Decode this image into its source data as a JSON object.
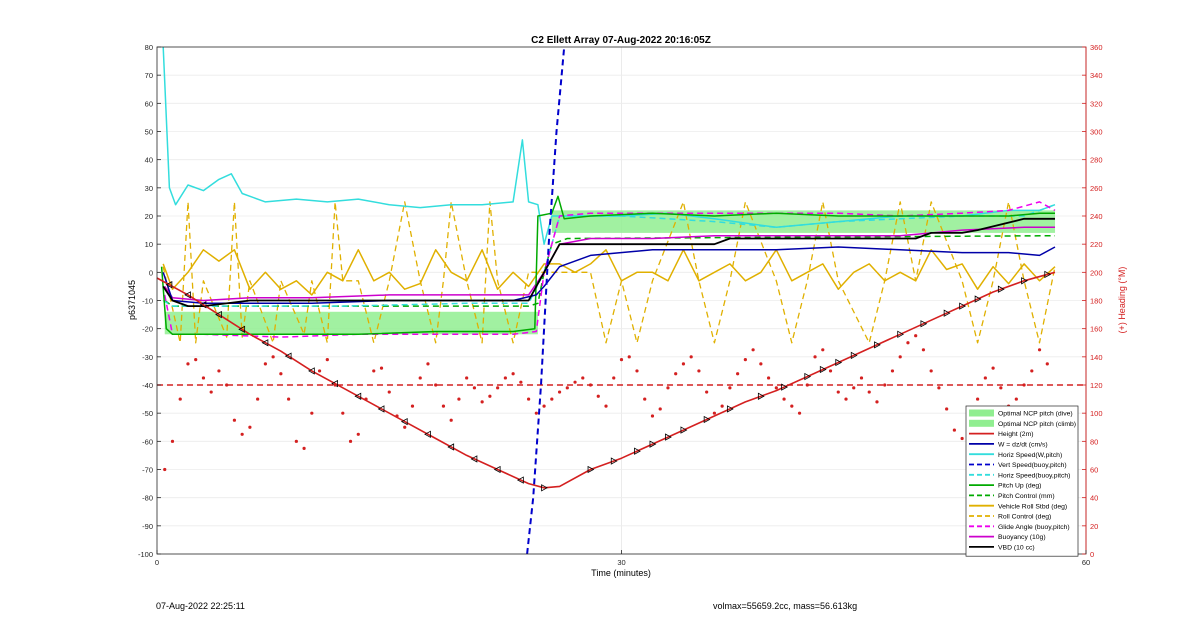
{
  "chart_data": {
    "type": "line",
    "title": "C2 Ellett Array 07-Aug-2022 20:16:05Z",
    "xlabel": "Time (minutes)",
    "ylabel_left": "p6371045",
    "ylabel_right": "(+) Heading (°M)",
    "xlim": [
      0,
      60
    ],
    "ylim_left": [
      -100,
      80
    ],
    "ylim_right": [
      0,
      360
    ],
    "xticks": [
      0,
      30,
      60
    ],
    "yticks_left": [
      -100,
      -90,
      -80,
      -70,
      -60,
      -50,
      -40,
      -30,
      -20,
      -10,
      0,
      10,
      20,
      30,
      40,
      50,
      60,
      70,
      80
    ],
    "yticks_right": [
      0,
      20,
      40,
      60,
      80,
      100,
      120,
      140,
      160,
      180,
      200,
      220,
      240,
      260,
      280,
      300,
      320,
      340,
      360
    ],
    "grid": true,
    "legend_position": "bottom-right",
    "legend": [
      {
        "label": "Optimal NCP pitch (dive)",
        "color": "#90ee90",
        "style": "patch"
      },
      {
        "label": "Optimal NCP pitch (climb)",
        "color": "#90ee90",
        "style": "patch"
      },
      {
        "label": "Height (2m)",
        "color": "#d42020",
        "style": "solid"
      },
      {
        "label": "W = dz/dt (cm/s)",
        "color": "#0000a8",
        "style": "solid"
      },
      {
        "label": "Horiz Speed(W,pitch)",
        "color": "#33dddd",
        "style": "solid"
      },
      {
        "label": "Vert Speed(buoy,pitch)",
        "color": "#0000cc",
        "style": "dashed"
      },
      {
        "label": "Horiz Speed(buoy,pitch)",
        "color": "#33dddd",
        "style": "dashed"
      },
      {
        "label": "Pitch Up (deg)",
        "color": "#00aa00",
        "style": "solid"
      },
      {
        "label": "Pitch Control (mm)",
        "color": "#00aa00",
        "style": "dashed"
      },
      {
        "label": "Vehicle Roll Stbd (deg)",
        "color": "#e0b000",
        "style": "solid"
      },
      {
        "label": "Roll Control (deg)",
        "color": "#e0b000",
        "style": "dashed"
      },
      {
        "label": "Glide Angle (buoy,pitch)",
        "color": "#ee00ee",
        "style": "dashed"
      },
      {
        "label": "Buoyancy (10g)",
        "color": "#cc00cc",
        "style": "solid"
      },
      {
        "label": "VBD (10 cc)",
        "color": "#000000",
        "style": "solid"
      }
    ],
    "heading_target": 120,
    "series": {
      "optimal_dive": {
        "x": [
          0.5,
          24.6
        ],
        "ylow": -22,
        "yhigh": -14
      },
      "optimal_climb": {
        "x": [
          25.5,
          58
        ],
        "ylow": 14,
        "yhigh": 22
      },
      "depth": {
        "x": [
          0,
          2,
          4,
          6,
          8,
          10,
          12,
          14,
          16,
          18,
          20,
          22,
          24,
          25,
          26,
          28,
          30,
          32,
          34,
          36,
          38,
          40,
          42,
          44,
          46,
          48,
          50,
          52,
          54,
          56,
          58
        ],
        "y": [
          -2,
          -8,
          -15,
          -22,
          -28,
          -35,
          -41,
          -47,
          -53,
          -59,
          -65,
          -70,
          -75,
          -76.5,
          -76,
          -70,
          -66,
          -61,
          -56,
          -51,
          -46,
          -42,
          -37,
          -32,
          -27,
          -22,
          -17,
          -12,
          -7,
          -3,
          0
        ]
      },
      "w": {
        "x": [
          0.4,
          1,
          3,
          6,
          10,
          15,
          20,
          23,
          24.5,
          25,
          26,
          28,
          32,
          36,
          40,
          44,
          48,
          52,
          55,
          57,
          58
        ],
        "y": [
          0,
          -10,
          -11,
          -11,
          -11,
          -10,
          -10,
          -10,
          -8,
          -5,
          2,
          6,
          8,
          8,
          8,
          9,
          8,
          7,
          7,
          6,
          9
        ]
      },
      "horiz_speed": {
        "x": [
          0.4,
          0.8,
          1.2,
          2,
          3,
          4,
          4.8,
          5.5,
          7,
          9,
          11,
          13,
          15,
          17,
          19,
          21,
          23,
          23.6,
          24,
          24.6,
          25,
          25.5,
          27,
          30,
          33,
          36,
          40,
          44,
          48,
          52,
          55,
          57,
          58
        ],
        "y": [
          80,
          30,
          24,
          31,
          29,
          33,
          35,
          28,
          25,
          26,
          25,
          26,
          24,
          23,
          24,
          24,
          25,
          47,
          25,
          24,
          10,
          20,
          20,
          20,
          21,
          19,
          16,
          18,
          20,
          20,
          22,
          22,
          24
        ]
      },
      "vert_speed_buoy": {
        "x": [
          23.9,
          24.3,
          24.8,
          25.3,
          25.8,
          26.3
        ],
        "y": [
          -100,
          -80,
          -40,
          10,
          50,
          80
        ]
      },
      "horiz_speed_buoy": {
        "x": [
          0.4,
          1,
          3,
          8,
          12,
          20,
          24,
          25,
          26,
          30,
          36,
          40,
          44,
          48,
          52,
          56,
          58
        ],
        "y": [
          -10,
          -12,
          -12,
          -12,
          -12,
          -11,
          -11,
          0,
          20,
          20,
          18,
          16,
          18,
          19,
          20,
          20,
          24
        ]
      },
      "pitch": {
        "x": [
          0.3,
          0.6,
          1,
          3,
          8,
          13,
          18,
          23,
          24.4,
          24.6,
          25.5,
          25.9,
          26.3,
          28,
          32,
          36,
          40,
          44,
          48,
          52,
          55,
          57,
          58
        ],
        "y": [
          2,
          -20,
          -22,
          -22,
          -22,
          -22,
          -21,
          -21,
          -20,
          20,
          21,
          27,
          19,
          20,
          21,
          20,
          21,
          20,
          20,
          20,
          20,
          21,
          21
        ]
      },
      "pitch_control": {
        "x": [
          0.5,
          1,
          24,
          24.6,
          25,
          25.5,
          26.5,
          58
        ],
        "y": [
          -10,
          -12,
          -12,
          -11,
          0,
          10,
          12,
          13
        ]
      },
      "roll": {
        "x": [
          0.4,
          1,
          2,
          3,
          4,
          5,
          6,
          7,
          8,
          9,
          10,
          11,
          12,
          13,
          14,
          15,
          16,
          17,
          18,
          19,
          20,
          21,
          22,
          23,
          24,
          25,
          26,
          27,
          28,
          29,
          30,
          31,
          32,
          33,
          34,
          35,
          36,
          37,
          38,
          39,
          40,
          41,
          42,
          43,
          44,
          45,
          46,
          47,
          48,
          49,
          50,
          51,
          52,
          53,
          54,
          55,
          56,
          57,
          58
        ],
        "y": [
          3,
          -6,
          0,
          8,
          4,
          8,
          -6,
          0,
          -6,
          -3,
          -8,
          0,
          -3,
          8,
          -3,
          0,
          -6,
          -4,
          8,
          0,
          -3,
          8,
          -6,
          0,
          -5,
          3,
          3,
          0,
          3,
          8,
          -3,
          0,
          0,
          -3,
          8,
          -3,
          0,
          3,
          -3,
          0,
          8,
          -3,
          0,
          3,
          -6,
          0,
          3,
          -3,
          0,
          -3,
          8,
          1,
          3,
          -6,
          2,
          -4,
          3,
          -3,
          2
        ]
      },
      "roll_control": {
        "x": [
          0.4,
          1.5,
          2,
          2.5,
          3,
          4.5,
          5,
          5.5,
          6,
          7.5,
          8,
          9.5,
          10,
          11,
          11.5,
          12,
          13,
          14,
          15,
          16,
          17,
          18,
          18.5,
          19,
          20,
          21,
          21.5,
          22,
          23,
          24,
          25,
          26,
          28,
          29,
          30,
          31,
          32,
          34,
          35,
          36,
          37,
          38,
          40,
          41,
          42,
          43,
          44,
          46,
          47,
          48,
          49,
          50,
          52,
          53,
          54,
          55,
          56,
          57,
          58
        ],
        "y": [
          2,
          -25,
          25,
          -25,
          -3,
          -23,
          25,
          -23,
          -3,
          -25,
          -3,
          -22,
          -3,
          -25,
          25,
          -3,
          -3,
          -25,
          -3,
          25,
          -3,
          -25,
          -3,
          25,
          -3,
          -25,
          25,
          -3,
          -25,
          0,
          0,
          0,
          0,
          -25,
          -3,
          -25,
          -3,
          25,
          -3,
          -25,
          -3,
          25,
          -3,
          -25,
          -3,
          25,
          -3,
          -25,
          -3,
          25,
          -3,
          25,
          -3,
          -25,
          -3,
          25,
          -3,
          -25,
          2
        ]
      },
      "glide_angle": {
        "x": [
          0.5,
          1,
          3,
          8,
          13,
          18,
          23,
          24.5,
          25,
          26,
          28,
          32,
          36,
          40,
          44,
          48,
          52,
          55,
          57,
          58
        ],
        "y": [
          -8,
          -22,
          -22,
          -23,
          -22,
          -22,
          -22,
          -21,
          0,
          20,
          21,
          21,
          21,
          21,
          21,
          20,
          21,
          22,
          25,
          22
        ]
      },
      "buoyancy": {
        "x": [
          0.5,
          1,
          3,
          6,
          10,
          15,
          20,
          24,
          25,
          26,
          28,
          32,
          36,
          40,
          44,
          48,
          52,
          56,
          58
        ],
        "y": [
          -5,
          -9,
          -10,
          -9,
          -9,
          -8,
          -8,
          -8,
          0,
          10,
          12,
          12,
          13,
          13,
          13,
          13,
          15,
          16,
          16
        ]
      },
      "vbd": {
        "x": [
          0.4,
          1,
          2,
          3,
          6,
          10,
          15,
          20,
          24,
          25,
          26,
          30,
          36,
          37,
          44,
          49,
          50,
          52,
          53,
          56,
          58
        ],
        "y": [
          -5,
          -10,
          -12,
          -12,
          -10,
          -10,
          -10,
          -10,
          -10,
          0,
          10,
          10,
          10,
          12,
          12,
          12,
          14,
          14,
          15,
          19,
          19
        ]
      }
    },
    "heading_points": {
      "x": [
        0.5,
        1,
        1.5,
        2,
        2.5,
        3,
        3.5,
        4,
        4.5,
        5,
        5.5,
        6,
        6.5,
        7,
        7.5,
        8,
        8.5,
        9,
        9.5,
        10,
        10.5,
        11,
        11.5,
        12,
        12.5,
        13,
        13.5,
        14,
        14.5,
        15,
        15.5,
        16,
        16.5,
        17,
        17.5,
        18,
        18.5,
        19,
        19.5,
        20,
        20.5,
        21,
        21.5,
        22,
        22.5,
        23,
        23.5,
        24,
        24.5,
        25,
        25.5,
        26,
        26.5,
        27,
        27.5,
        28,
        28.5,
        29,
        29.5,
        30,
        30.5,
        31,
        31.5,
        32,
        32.5,
        33,
        33.5,
        34,
        34.5,
        35,
        35.5,
        36,
        36.5,
        37,
        37.5,
        38,
        38.5,
        39,
        39.5,
        40,
        40.5,
        41,
        41.5,
        42,
        42.5,
        43,
        43.5,
        44,
        44.5,
        45,
        45.5,
        46,
        46.5,
        47,
        47.5,
        48,
        48.5,
        49,
        49.5,
        50,
        50.5,
        51,
        51.5,
        52,
        52.5,
        53,
        53.5,
        54,
        54.5,
        55,
        55.5,
        56,
        56.5,
        57,
        57.5
      ],
      "y": [
        60,
        80,
        110,
        135,
        138,
        125,
        115,
        130,
        120,
        95,
        85,
        90,
        110,
        135,
        140,
        128,
        110,
        80,
        75,
        100,
        130,
        138,
        120,
        100,
        80,
        85,
        110,
        130,
        132,
        115,
        98,
        90,
        105,
        125,
        135,
        120,
        105,
        95,
        110,
        125,
        118,
        108,
        112,
        118,
        125,
        128,
        122,
        110,
        100,
        105,
        110,
        115,
        118,
        122,
        125,
        120,
        112,
        105,
        125,
        138,
        140,
        130,
        110,
        98,
        103,
        118,
        128,
        135,
        140,
        130,
        115,
        100,
        105,
        118,
        128,
        138,
        145,
        135,
        125,
        118,
        110,
        105,
        100,
        120,
        140,
        145,
        130,
        115,
        110,
        118,
        125,
        115,
        108,
        120,
        130,
        140,
        150,
        155,
        145,
        130,
        118,
        103,
        88,
        82,
        92,
        110,
        125,
        132,
        118,
        105,
        110,
        120,
        130,
        145,
        135
      ]
    },
    "triangle_markers_x": [
      0.8,
      2,
      3,
      4,
      5.5,
      7,
      8.5,
      10,
      11.5,
      13,
      14.5,
      16,
      17.5,
      19,
      20.5,
      22,
      23.5,
      25,
      28,
      29.5,
      31,
      32,
      33,
      34,
      35.5,
      37,
      39,
      40.5,
      42,
      43,
      44,
      45,
      46.5,
      48,
      49.5,
      51,
      52,
      53,
      54.5,
      56,
      57.5
    ]
  },
  "footer": {
    "left": "07-Aug-2022 22:25:11",
    "right": "volmax=55659.2cc, mass=56.613kg"
  }
}
